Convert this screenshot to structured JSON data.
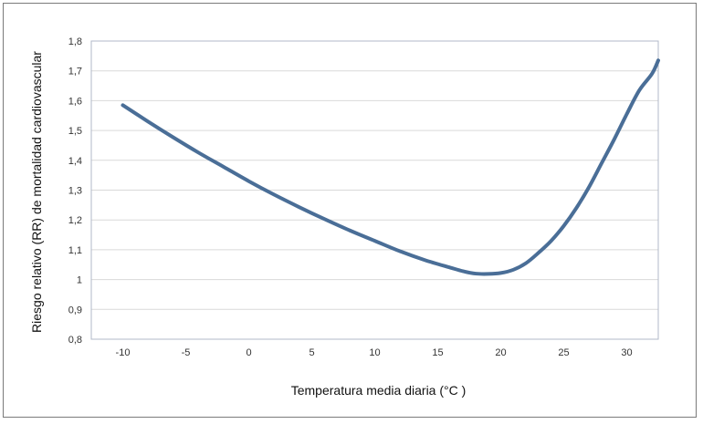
{
  "chart_data": {
    "type": "line",
    "title": "",
    "xlabel": "Temperatura media diaria (°C )",
    "ylabel": "Riesgo relativo (RR) de mortalidad cardiovascular",
    "xlim": [
      -12.5,
      32.5
    ],
    "ylim": [
      0.8,
      1.8
    ],
    "x_ticks": [
      "-10",
      "-5",
      "0",
      "5",
      "10",
      "15",
      "20",
      "25",
      "30"
    ],
    "y_ticks": [
      "0,8",
      "0,9",
      "1",
      "1,1",
      "1,2",
      "1,3",
      "1,4",
      "1,5",
      "1,6",
      "1,7",
      "1,8"
    ],
    "grid": true,
    "legend": "none",
    "series": [
      {
        "color": "#4a6e97",
        "x": [
          -10,
          -8,
          -6,
          -4,
          -2,
          0,
          2,
          4,
          6,
          8,
          10,
          12,
          14,
          16,
          17,
          18,
          19,
          20,
          21,
          22,
          23,
          24,
          25,
          26,
          27,
          28,
          29,
          30,
          31,
          32,
          32.5
        ],
        "y": [
          1.585,
          1.53,
          1.477,
          1.426,
          1.378,
          1.33,
          1.285,
          1.243,
          1.203,
          1.165,
          1.13,
          1.095,
          1.065,
          1.04,
          1.028,
          1.02,
          1.019,
          1.022,
          1.033,
          1.055,
          1.09,
          1.13,
          1.18,
          1.24,
          1.31,
          1.39,
          1.47,
          1.555,
          1.635,
          1.69,
          1.735
        ]
      }
    ]
  }
}
